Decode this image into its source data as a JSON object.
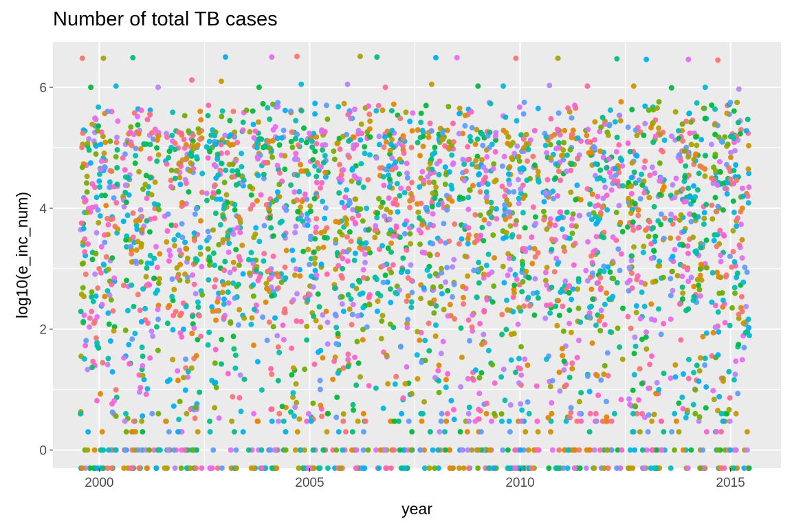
{
  "chart_data": {
    "type": "scatter",
    "title": "Number of total TB cases",
    "xlabel": "year",
    "ylabel": "log10(e_inc_num)",
    "xlim": [
      1998.9,
      2016.2
    ],
    "ylim": [
      -0.3,
      6.75
    ],
    "x_ticks": [
      2000,
      2005,
      2010,
      2015
    ],
    "x_tick_labels": [
      "2000",
      "2005",
      "2010",
      "2015"
    ],
    "y_ticks": [
      0,
      2,
      4,
      6
    ],
    "y_tick_labels": [
      "0",
      "2",
      "4",
      "6"
    ],
    "grid": true,
    "panel_background": "#ebebeb",
    "grid_color": "#ffffff",
    "legend": "none",
    "point_colors": [
      "#f8766d",
      "#e58700",
      "#c99800",
      "#a3a500",
      "#6bb100",
      "#00ba38",
      "#00bf7d",
      "#00c0af",
      "#00bcd8",
      "#00b0f6",
      "#619cff",
      "#b983ff",
      "#e76bf3",
      "#fd61d1",
      "#ff67a4"
    ],
    "series": [
      {
        "name": "",
        "x": [
          1999.6,
          2000.1,
          2000.8,
          2003.0,
          2004.1,
          2004.7,
          2006.2,
          2006.6,
          2008.0,
          2008.5,
          2009.9,
          2010.9,
          2012.3,
          2013.0,
          2014.0,
          2014.7
        ],
        "y": [
          6.48,
          6.48,
          6.49,
          6.5,
          6.5,
          6.51,
          6.51,
          6.5,
          6.49,
          6.49,
          6.48,
          6.48,
          6.47,
          6.46,
          6.46,
          6.45
        ]
      },
      {
        "name": "",
        "x": [
          1999.8,
          2000.4,
          2001.4,
          2002.2,
          2002.9,
          2003.8,
          2004.8,
          2005.9,
          2006.8,
          2007.9,
          2009.0,
          2009.6,
          2010.7,
          2011.6,
          2012.7,
          2013.6,
          2014.4,
          2015.2
        ],
        "y": [
          6.0,
          6.02,
          6.0,
          6.12,
          6.1,
          6.0,
          6.05,
          6.05,
          6.0,
          6.05,
          6.02,
          6.02,
          6.03,
          6.02,
          6.02,
          5.99,
          6.0,
          5.97
        ]
      },
      {
        "name": "",
        "x": [
          2000.2,
          2001.0,
          2002.4,
          2003.5,
          2004.0,
          2005.4,
          2006.4,
          2007.0,
          2008.3,
          2009.3,
          2010.1,
          2011.3,
          2012.4,
          2013.3,
          2014.2,
          2015.0
        ],
        "y": [
          5.6,
          5.62,
          5.6,
          5.62,
          5.66,
          5.7,
          5.69,
          5.72,
          5.68,
          5.73,
          5.75,
          5.7,
          5.76,
          5.76,
          5.74,
          5.75
        ]
      }
    ],
    "point_cloud": {
      "x_range": [
        1999.55,
        2015.45
      ],
      "years": [
        2000,
        2001,
        2002,
        2003,
        2004,
        2005,
        2006,
        2007,
        2008,
        2009,
        2010,
        2011,
        2012,
        2013,
        2014,
        2015
      ],
      "points_per_year": 215,
      "y_distribution": "dense 2.5-5.5, sparser 0-2, values at 0 and below"
    }
  }
}
